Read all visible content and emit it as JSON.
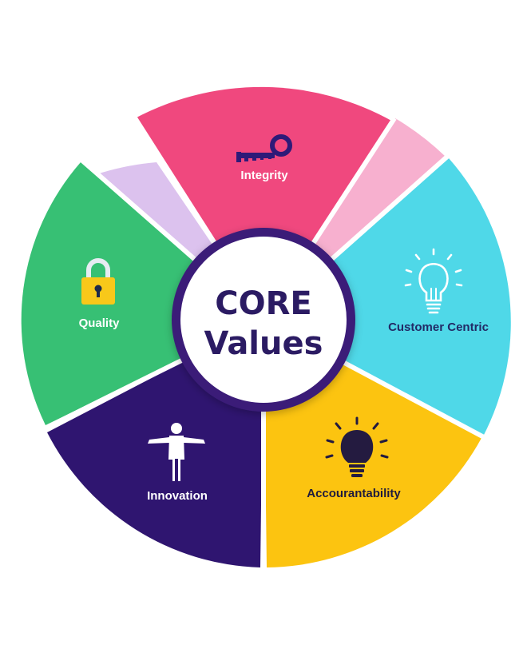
{
  "center": {
    "line1": "CORE",
    "line2": "Values"
  },
  "segments": [
    {
      "id": "integrity",
      "label": "Integrity",
      "icon": "key-icon",
      "color": "#f0487e",
      "text_color": "#ffffff",
      "icon_color": "#2e1a78"
    },
    {
      "id": "customer-centric",
      "label": "Customer Centric",
      "icon": "lightbulb-outline-icon",
      "color": "#4fd8e8",
      "text_color": "#222a66",
      "icon_color": "#ffffff"
    },
    {
      "id": "accountability",
      "label": "Accourantability",
      "icon": "lightbulb-icon",
      "color": "#fcc410",
      "text_color": "#1f1a3d",
      "icon_color": "#241b40"
    },
    {
      "id": "innovation",
      "label": "Innovation",
      "icon": "person-icon",
      "color": "#2f1570",
      "text_color": "#ffffff",
      "icon_color": "#ffffff"
    },
    {
      "id": "quality",
      "label": "Quality",
      "icon": "padlock-icon",
      "color": "#37c074",
      "text_color": "#ffffff",
      "icon_color": "#f8c81a"
    }
  ],
  "accents": {
    "lavender": "#dcc2ee",
    "light_pink": "#f7b0cf",
    "center_ring": "#3a1c78",
    "center_text": "#2b1b63"
  }
}
